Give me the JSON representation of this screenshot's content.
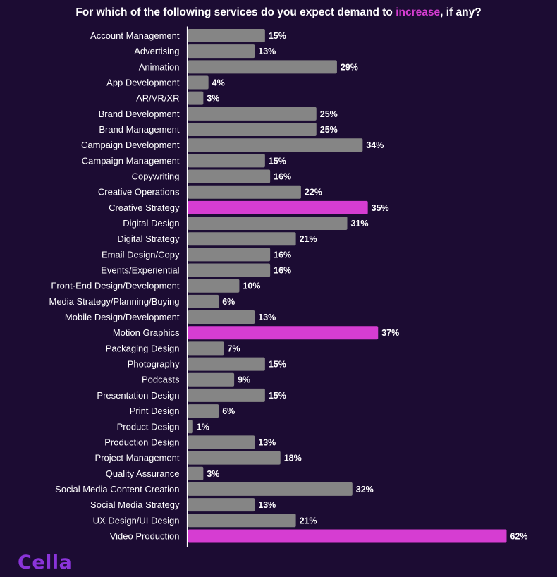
{
  "chart_data": {
    "type": "bar",
    "orientation": "horizontal",
    "title": {
      "prefix": "For which of the following services do you expect demand to ",
      "highlight": "increase",
      "suffix": ", if any?"
    },
    "value_suffix": "%",
    "xlim": [
      0,
      62
    ],
    "categories": [
      "Account Management",
      "Advertising",
      "Animation",
      "App Development",
      "AR/VR/XR",
      "Brand Development",
      "Brand Management",
      "Campaign Development",
      "Campaign Management",
      "Copywriting",
      "Creative Operations",
      "Creative Strategy",
      "Digital Design",
      "Digital Strategy",
      "Email Design/Copy",
      "Events/Experiential",
      "Front-End Design/Development",
      "Media Strategy/Planning/Buying",
      "Mobile Design/Development",
      "Motion Graphics",
      "Packaging Design",
      "Photography",
      "Podcasts",
      "Presentation Design",
      "Print Design",
      "Product Design",
      "Production Design",
      "Project Management",
      "Quality Assurance",
      "Social Media Content Creation",
      "Social Media Strategy",
      "UX Design/UI Design",
      "Video Production"
    ],
    "values": [
      15,
      13,
      29,
      4,
      3,
      25,
      25,
      34,
      15,
      16,
      22,
      35,
      31,
      21,
      16,
      16,
      10,
      6,
      13,
      37,
      7,
      15,
      9,
      15,
      6,
      1,
      13,
      18,
      3,
      32,
      13,
      21,
      62
    ],
    "highlighted": [
      "Creative Strategy",
      "Motion Graphics",
      "Video Production"
    ],
    "colors": {
      "background": "#1c0c33",
      "bar": "#858585",
      "highlight": "#d63dd2",
      "text": "#ffffff",
      "axis": "#ffffff",
      "logo": "#8a34d9"
    }
  },
  "logo": {
    "text": "Cella"
  }
}
